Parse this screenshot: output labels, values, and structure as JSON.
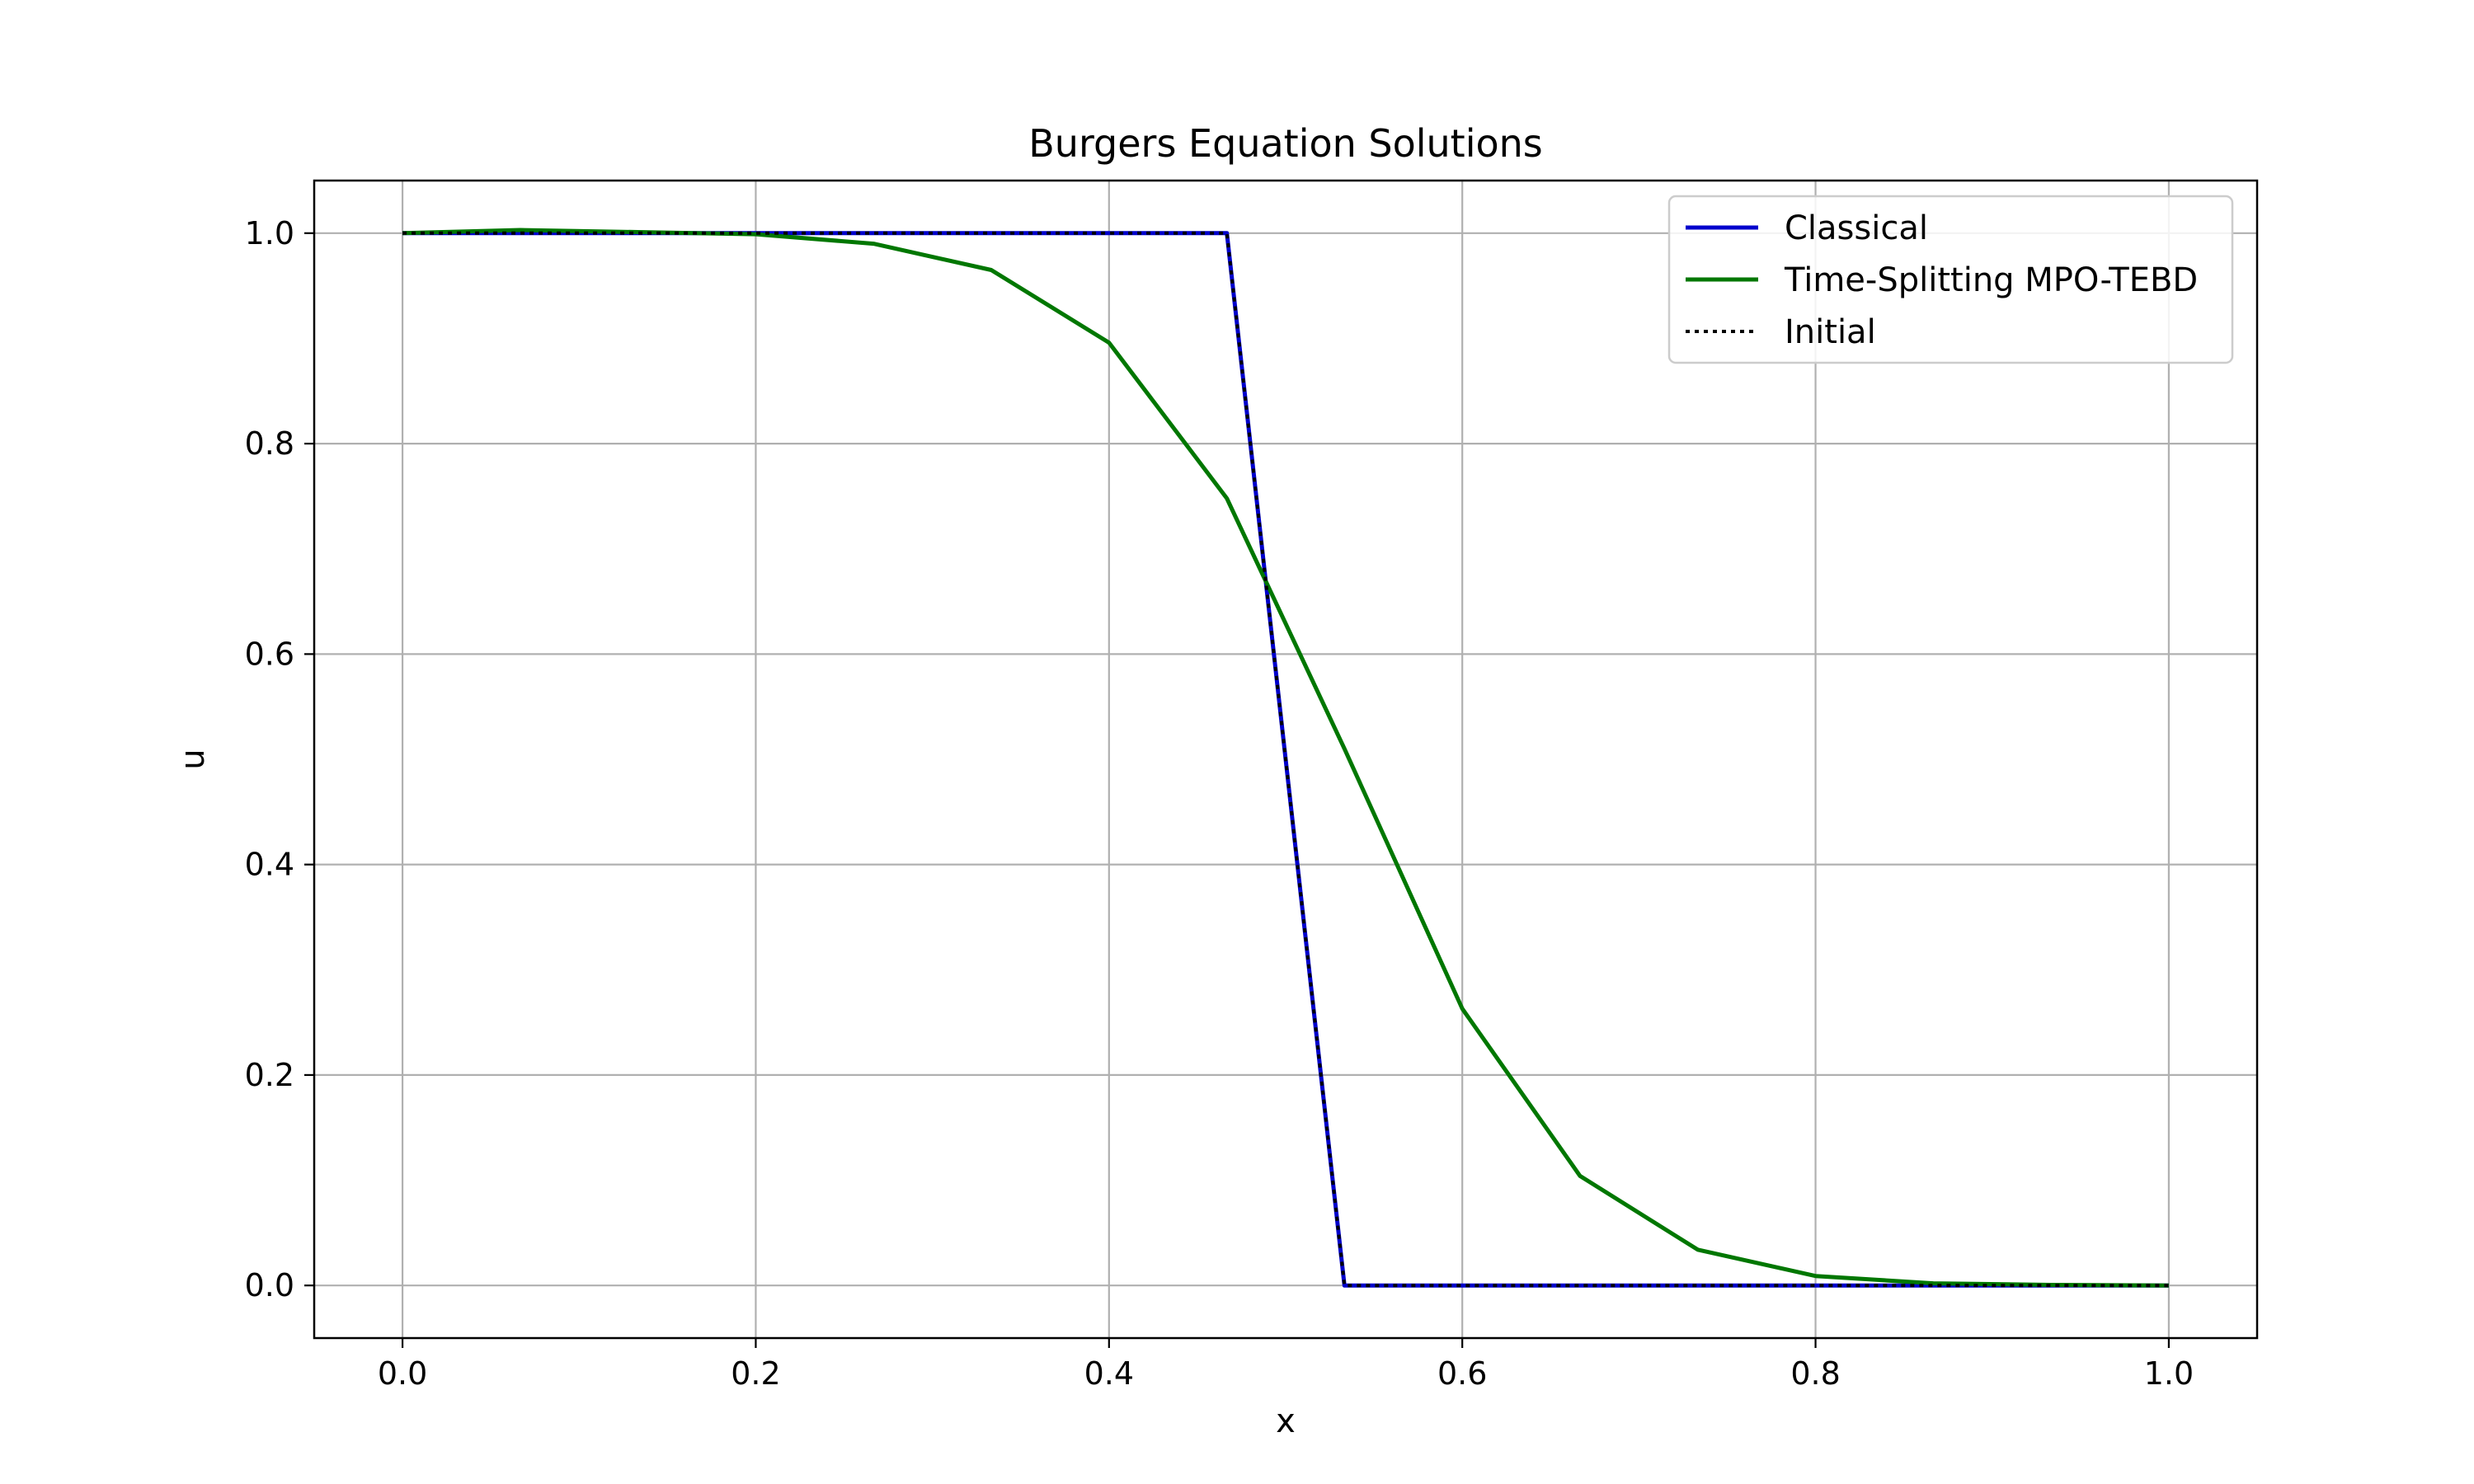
{
  "chart_data": {
    "type": "line",
    "title": "Burgers Equation Solutions",
    "xlabel": "x",
    "ylabel": "u",
    "xlim": [
      -0.05,
      1.05
    ],
    "ylim": [
      -0.05,
      1.05
    ],
    "xticks": [
      0.0,
      0.2,
      0.4,
      0.6,
      0.8,
      1.0
    ],
    "yticks": [
      0.0,
      0.2,
      0.4,
      0.6,
      0.8,
      1.0
    ],
    "tick_decimals": 1,
    "grid": true,
    "legend_position": "top-right",
    "series": [
      {
        "name": "Classical",
        "color": "#0000cc",
        "style": "solid",
        "x": [
          0.0,
          0.0667,
          0.1333,
          0.2,
          0.2667,
          0.3333,
          0.4,
          0.4667,
          0.5333,
          0.6,
          0.6667,
          0.7333,
          0.8,
          0.8667,
          0.9333,
          1.0
        ],
        "y": [
          1.0,
          1.0,
          1.0,
          1.0,
          1.0,
          1.0,
          1.0,
          1.0,
          0.0,
          0.0,
          0.0,
          0.0,
          0.0,
          0.0,
          0.0,
          0.0
        ]
      },
      {
        "name": "Time-Splitting MPO-TEBD",
        "color": "#007700",
        "style": "solid",
        "x": [
          0.0,
          0.0667,
          0.1333,
          0.2,
          0.2667,
          0.3333,
          0.4,
          0.4667,
          0.5333,
          0.6,
          0.6667,
          0.7333,
          0.8,
          0.8667,
          0.9333,
          1.0
        ],
        "y": [
          1.0,
          1.003,
          1.001,
          0.999,
          0.99,
          0.965,
          0.896,
          0.748,
          0.51,
          0.263,
          0.104,
          0.034,
          0.009,
          0.002,
          0.0005,
          0.0
        ]
      },
      {
        "name": "Initial",
        "color": "#000000",
        "style": "dotted",
        "x": [
          0.0,
          0.0667,
          0.1333,
          0.2,
          0.2667,
          0.3333,
          0.4,
          0.4667,
          0.5333,
          0.6,
          0.6667,
          0.7333,
          0.8,
          0.8667,
          0.9333,
          1.0
        ],
        "y": [
          1.0,
          1.0,
          1.0,
          1.0,
          1.0,
          1.0,
          1.0,
          1.0,
          0.0,
          0.0,
          0.0,
          0.0,
          0.0,
          0.0,
          0.0,
          0.0
        ]
      }
    ]
  }
}
